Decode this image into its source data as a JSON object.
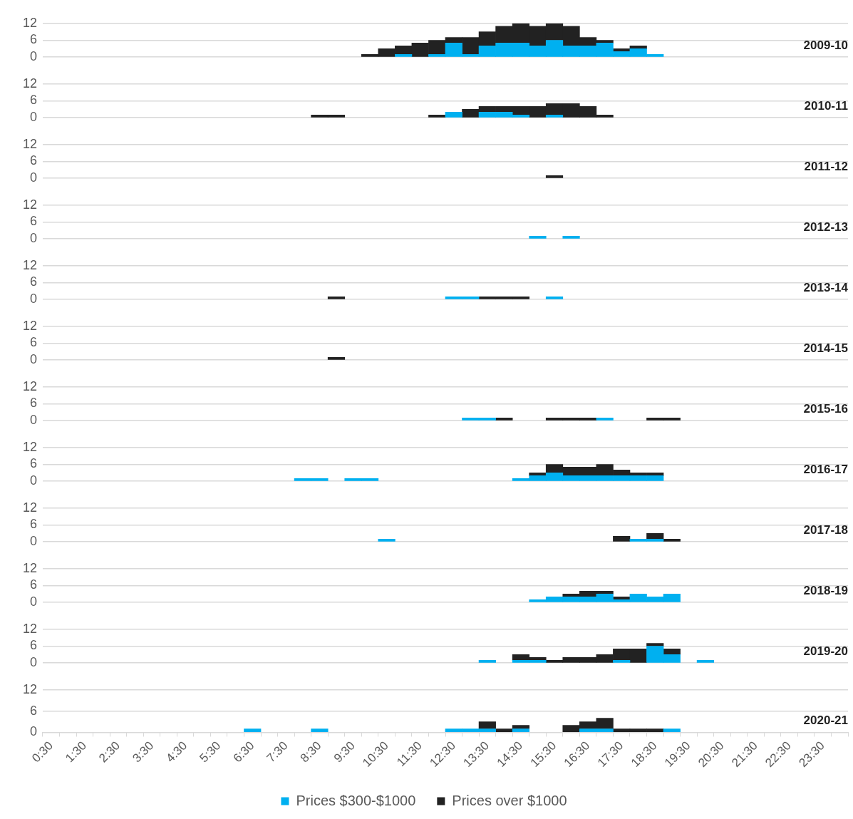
{
  "chart_data": [
    {
      "type": "bar",
      "title": "2009-10",
      "stacked": true,
      "grid": "y",
      "tick_labels": "y",
      "ylim": [
        0,
        12
      ],
      "yticks": [
        0,
        6,
        12
      ],
      "legend": false,
      "series": [
        {
          "color": "#00b0f0",
          "values": [
            null,
            null,
            null,
            null,
            null,
            null,
            null,
            null,
            null,
            null,
            null,
            null,
            null,
            null,
            null,
            null,
            null,
            null,
            null,
            null,
            null,
            1,
            null,
            1,
            5,
            1,
            4,
            5,
            5,
            4,
            6,
            4,
            4,
            5,
            2,
            3,
            1,
            null,
            null,
            null,
            null,
            null,
            null,
            null,
            null,
            null,
            null,
            null
          ]
        },
        {
          "color": "#222222",
          "values": [
            null,
            null,
            null,
            null,
            null,
            null,
            null,
            null,
            null,
            null,
            null,
            null,
            null,
            null,
            null,
            null,
            null,
            null,
            null,
            1,
            3,
            3,
            5,
            5,
            2,
            6,
            5,
            6,
            7,
            7,
            6,
            7,
            3,
            1,
            1,
            1,
            null,
            null,
            null,
            null,
            null,
            null,
            null,
            null,
            null,
            null,
            null,
            null
          ]
        }
      ]
    },
    {
      "type": "bar",
      "title": "2010-11",
      "stacked": true,
      "grid": "y",
      "tick_labels": "y",
      "ylim": [
        0,
        12
      ],
      "yticks": [
        0,
        6,
        12
      ],
      "legend": false,
      "series": [
        {
          "color": "#00b0f0",
          "values": [
            null,
            null,
            null,
            null,
            null,
            null,
            null,
            null,
            null,
            null,
            null,
            null,
            null,
            null,
            null,
            null,
            null,
            null,
            null,
            null,
            null,
            null,
            null,
            null,
            2,
            null,
            2,
            2,
            1,
            null,
            1,
            null,
            null,
            null,
            null,
            null,
            null,
            null,
            null,
            null,
            null,
            null,
            null,
            null,
            null,
            null,
            null,
            null
          ]
        },
        {
          "color": "#222222",
          "values": [
            null,
            null,
            null,
            null,
            null,
            null,
            null,
            null,
            null,
            null,
            null,
            null,
            null,
            null,
            null,
            null,
            1,
            1,
            null,
            null,
            null,
            null,
            null,
            1,
            null,
            3,
            2,
            2,
            3,
            4,
            4,
            5,
            4,
            1,
            null,
            null,
            null,
            null,
            null,
            null,
            null,
            null,
            null,
            null,
            null,
            null,
            null,
            null
          ]
        }
      ]
    },
    {
      "type": "bar",
      "title": "2011-12",
      "stacked": true,
      "grid": "y",
      "tick_labels": "y",
      "ylim": [
        0,
        12
      ],
      "yticks": [
        0,
        6,
        12
      ],
      "legend": false,
      "series": [
        {
          "color": "#00b0f0",
          "values": [
            null,
            null,
            null,
            null,
            null,
            null,
            null,
            null,
            null,
            null,
            null,
            null,
            null,
            null,
            null,
            null,
            null,
            null,
            null,
            null,
            null,
            null,
            null,
            null,
            null,
            null,
            null,
            null,
            null,
            null,
            null,
            null,
            null,
            null,
            null,
            null,
            null,
            null,
            null,
            null,
            null,
            null,
            null,
            null,
            null,
            null,
            null,
            null
          ]
        },
        {
          "color": "#222222",
          "values": [
            null,
            null,
            null,
            null,
            null,
            null,
            null,
            null,
            null,
            null,
            null,
            null,
            null,
            null,
            null,
            null,
            null,
            null,
            null,
            null,
            null,
            null,
            null,
            null,
            null,
            null,
            null,
            null,
            null,
            null,
            1,
            null,
            null,
            null,
            null,
            null,
            null,
            null,
            null,
            null,
            null,
            null,
            null,
            null,
            null,
            null,
            null,
            null
          ]
        }
      ]
    },
    {
      "type": "bar",
      "title": "2012-13",
      "stacked": true,
      "grid": "y",
      "tick_labels": "y",
      "ylim": [
        0,
        12
      ],
      "yticks": [
        0,
        6,
        12
      ],
      "legend": false,
      "series": [
        {
          "color": "#00b0f0",
          "values": [
            null,
            null,
            null,
            null,
            null,
            null,
            null,
            null,
            null,
            null,
            null,
            null,
            null,
            null,
            null,
            null,
            null,
            null,
            null,
            null,
            null,
            null,
            null,
            null,
            null,
            null,
            null,
            null,
            null,
            1,
            null,
            1,
            null,
            null,
            null,
            null,
            null,
            null,
            null,
            null,
            null,
            null,
            null,
            null,
            null,
            null,
            null,
            null
          ]
        },
        {
          "color": "#222222",
          "values": [
            null,
            null,
            null,
            null,
            null,
            null,
            null,
            null,
            null,
            null,
            null,
            null,
            null,
            null,
            null,
            null,
            null,
            null,
            null,
            null,
            null,
            null,
            null,
            null,
            null,
            null,
            null,
            null,
            null,
            null,
            null,
            null,
            null,
            null,
            null,
            null,
            null,
            null,
            null,
            null,
            null,
            null,
            null,
            null,
            null,
            null,
            null,
            null
          ]
        }
      ]
    },
    {
      "type": "bar",
      "title": "2013-14",
      "stacked": true,
      "grid": "y",
      "tick_labels": "y",
      "ylim": [
        0,
        12
      ],
      "yticks": [
        0,
        6,
        12
      ],
      "legend": false,
      "series": [
        {
          "color": "#00b0f0",
          "values": [
            null,
            null,
            null,
            null,
            null,
            null,
            null,
            null,
            null,
            null,
            null,
            null,
            null,
            null,
            null,
            null,
            null,
            null,
            null,
            null,
            null,
            null,
            null,
            null,
            1,
            1,
            null,
            null,
            null,
            null,
            1,
            null,
            null,
            null,
            null,
            null,
            null,
            null,
            null,
            null,
            null,
            null,
            null,
            null,
            null,
            null,
            null,
            null
          ]
        },
        {
          "color": "#222222",
          "values": [
            null,
            null,
            null,
            null,
            null,
            null,
            null,
            null,
            null,
            null,
            null,
            null,
            null,
            null,
            null,
            null,
            null,
            1,
            null,
            null,
            null,
            null,
            null,
            null,
            null,
            null,
            1,
            1,
            1,
            null,
            null,
            null,
            null,
            null,
            null,
            null,
            null,
            null,
            null,
            null,
            null,
            null,
            null,
            null,
            null,
            null,
            null,
            null
          ]
        }
      ]
    },
    {
      "type": "bar",
      "title": "2014-15",
      "stacked": true,
      "grid": "y",
      "tick_labels": "y",
      "ylim": [
        0,
        12
      ],
      "yticks": [
        0,
        6,
        12
      ],
      "legend": false,
      "series": [
        {
          "color": "#00b0f0",
          "values": [
            null,
            null,
            null,
            null,
            null,
            null,
            null,
            null,
            null,
            null,
            null,
            null,
            null,
            null,
            null,
            null,
            null,
            null,
            null,
            null,
            null,
            null,
            null,
            null,
            null,
            null,
            null,
            null,
            null,
            null,
            null,
            null,
            null,
            null,
            null,
            null,
            null,
            null,
            null,
            null,
            null,
            null,
            null,
            null,
            null,
            null,
            null,
            null
          ]
        },
        {
          "color": "#222222",
          "values": [
            null,
            null,
            null,
            null,
            null,
            null,
            null,
            null,
            null,
            null,
            null,
            null,
            null,
            null,
            null,
            null,
            null,
            1,
            null,
            null,
            null,
            null,
            null,
            null,
            null,
            null,
            null,
            null,
            null,
            null,
            null,
            null,
            null,
            null,
            null,
            null,
            null,
            null,
            null,
            null,
            null,
            null,
            null,
            null,
            null,
            null,
            null,
            null
          ]
        }
      ]
    },
    {
      "type": "bar",
      "title": "2015-16",
      "stacked": true,
      "grid": "y",
      "tick_labels": "y",
      "ylim": [
        0,
        12
      ],
      "yticks": [
        0,
        6,
        12
      ],
      "legend": false,
      "series": [
        {
          "color": "#00b0f0",
          "values": [
            null,
            null,
            null,
            null,
            null,
            null,
            null,
            null,
            null,
            null,
            null,
            null,
            null,
            null,
            null,
            null,
            null,
            null,
            null,
            null,
            null,
            null,
            null,
            null,
            null,
            1,
            1,
            null,
            null,
            null,
            null,
            null,
            null,
            1,
            null,
            null,
            null,
            null,
            null,
            null,
            null,
            null,
            null,
            null,
            null,
            null,
            null,
            null
          ]
        },
        {
          "color": "#222222",
          "values": [
            null,
            null,
            null,
            null,
            null,
            null,
            null,
            null,
            null,
            null,
            null,
            null,
            null,
            null,
            null,
            null,
            null,
            null,
            null,
            null,
            null,
            null,
            null,
            null,
            null,
            null,
            null,
            1,
            null,
            null,
            1,
            1,
            1,
            null,
            null,
            null,
            1,
            1,
            null,
            null,
            null,
            null,
            null,
            null,
            null,
            null,
            null,
            null
          ]
        }
      ]
    },
    {
      "type": "bar",
      "title": "2016-17",
      "stacked": true,
      "grid": "y",
      "tick_labels": "y",
      "ylim": [
        0,
        12
      ],
      "yticks": [
        0,
        6,
        12
      ],
      "legend": false,
      "series": [
        {
          "color": "#00b0f0",
          "values": [
            null,
            null,
            null,
            null,
            null,
            null,
            null,
            null,
            null,
            null,
            null,
            null,
            null,
            null,
            null,
            1,
            1,
            null,
            1,
            1,
            null,
            null,
            null,
            null,
            null,
            null,
            null,
            null,
            1,
            2,
            3,
            2,
            2,
            2,
            2,
            2,
            2,
            null,
            null,
            null,
            null,
            null,
            null,
            null,
            null,
            null,
            null,
            null
          ]
        },
        {
          "color": "#222222",
          "values": [
            null,
            null,
            null,
            null,
            null,
            null,
            null,
            null,
            null,
            null,
            null,
            null,
            null,
            null,
            null,
            null,
            null,
            null,
            null,
            null,
            null,
            null,
            null,
            null,
            null,
            null,
            null,
            null,
            null,
            1,
            3,
            3,
            3,
            4,
            2,
            1,
            1,
            null,
            null,
            null,
            null,
            null,
            null,
            null,
            null,
            null,
            null,
            null
          ]
        }
      ]
    },
    {
      "type": "bar",
      "title": "2017-18",
      "stacked": true,
      "grid": "y",
      "tick_labels": "y",
      "ylim": [
        0,
        12
      ],
      "yticks": [
        0,
        6,
        12
      ],
      "legend": false,
      "series": [
        {
          "color": "#00b0f0",
          "values": [
            null,
            null,
            null,
            null,
            null,
            null,
            null,
            null,
            null,
            null,
            null,
            null,
            null,
            null,
            null,
            null,
            null,
            null,
            null,
            null,
            1,
            null,
            null,
            null,
            null,
            null,
            null,
            null,
            null,
            null,
            null,
            null,
            null,
            null,
            null,
            1,
            1,
            null,
            null,
            null,
            null,
            null,
            null,
            null,
            null,
            null,
            null,
            null
          ]
        },
        {
          "color": "#222222",
          "values": [
            null,
            null,
            null,
            null,
            null,
            null,
            null,
            null,
            null,
            null,
            null,
            null,
            null,
            null,
            null,
            null,
            null,
            null,
            null,
            null,
            null,
            null,
            null,
            null,
            null,
            null,
            null,
            null,
            null,
            null,
            null,
            null,
            null,
            null,
            2,
            null,
            2,
            1,
            null,
            null,
            null,
            null,
            null,
            null,
            null,
            null,
            null,
            null
          ]
        }
      ]
    },
    {
      "type": "bar",
      "title": "2018-19",
      "stacked": true,
      "grid": "y",
      "tick_labels": "y",
      "ylim": [
        0,
        12
      ],
      "yticks": [
        0,
        6,
        12
      ],
      "legend": false,
      "series": [
        {
          "color": "#00b0f0",
          "values": [
            null,
            null,
            null,
            null,
            null,
            null,
            null,
            null,
            null,
            null,
            null,
            null,
            null,
            null,
            null,
            null,
            null,
            null,
            null,
            null,
            null,
            null,
            null,
            null,
            null,
            null,
            null,
            null,
            null,
            1,
            2,
            2,
            2,
            3,
            1,
            3,
            2,
            3,
            null,
            null,
            null,
            null,
            null,
            null,
            null,
            null,
            null,
            null
          ]
        },
        {
          "color": "#222222",
          "values": [
            null,
            null,
            null,
            null,
            null,
            null,
            null,
            null,
            null,
            null,
            null,
            null,
            null,
            null,
            null,
            null,
            null,
            null,
            null,
            null,
            null,
            null,
            null,
            null,
            null,
            null,
            null,
            null,
            null,
            null,
            null,
            1,
            2,
            1,
            1,
            null,
            null,
            null,
            null,
            null,
            null,
            null,
            null,
            null,
            null,
            null,
            null,
            null
          ]
        }
      ]
    },
    {
      "type": "bar",
      "title": "2019-20",
      "stacked": true,
      "grid": "y",
      "tick_labels": "y",
      "ylim": [
        0,
        12
      ],
      "yticks": [
        0,
        6,
        12
      ],
      "legend": false,
      "series": [
        {
          "color": "#00b0f0",
          "values": [
            null,
            null,
            null,
            null,
            null,
            null,
            null,
            null,
            null,
            null,
            null,
            null,
            null,
            null,
            null,
            null,
            null,
            null,
            null,
            null,
            null,
            null,
            null,
            null,
            null,
            null,
            1,
            null,
            1,
            1,
            null,
            null,
            null,
            null,
            1,
            null,
            6,
            3,
            null,
            1,
            null,
            null,
            null,
            null,
            null,
            null,
            null,
            null
          ]
        },
        {
          "color": "#222222",
          "values": [
            null,
            null,
            null,
            null,
            null,
            null,
            null,
            null,
            null,
            null,
            null,
            null,
            null,
            null,
            null,
            null,
            null,
            null,
            null,
            null,
            null,
            null,
            null,
            null,
            null,
            null,
            null,
            null,
            2,
            1,
            1,
            2,
            2,
            3,
            4,
            5,
            1,
            2,
            null,
            null,
            null,
            null,
            null,
            null,
            null,
            null,
            null,
            null
          ]
        }
      ]
    },
    {
      "type": "bar",
      "title": "2020-21",
      "stacked": true,
      "grid": "y",
      "ylim": [
        0,
        12
      ],
      "yticks": [
        0,
        6,
        12
      ],
      "legend": "bottom",
      "categories": [
        "0:30",
        null,
        "1:30",
        null,
        "2:30",
        null,
        "3:30",
        null,
        "4:30",
        null,
        "5:30",
        null,
        "6:30",
        null,
        "7:30",
        null,
        "8:30",
        null,
        "9:30",
        null,
        "10:30",
        null,
        "11:30",
        null,
        "12:30",
        null,
        "13:30",
        null,
        "14:30",
        null,
        "15:30",
        null,
        "16:30",
        null,
        "17:30",
        null,
        "18:30",
        null,
        "19:30",
        null,
        "20:30",
        null,
        "21:30",
        null,
        "22:30",
        null,
        "23:30",
        null
      ],
      "series": [
        {
          "name": "Prices $300-$1000",
          "color": "#00b0f0",
          "values": [
            null,
            null,
            null,
            null,
            null,
            null,
            null,
            null,
            null,
            null,
            null,
            null,
            1,
            null,
            null,
            null,
            1,
            null,
            null,
            null,
            null,
            null,
            null,
            null,
            1,
            1,
            1,
            null,
            1,
            null,
            null,
            null,
            1,
            1,
            null,
            null,
            null,
            1,
            null,
            null,
            null,
            null,
            null,
            null,
            null,
            null,
            null,
            null
          ]
        },
        {
          "name": "Prices over $1000",
          "color": "#222222",
          "values": [
            null,
            null,
            null,
            null,
            null,
            null,
            null,
            null,
            null,
            null,
            null,
            null,
            null,
            null,
            null,
            null,
            null,
            null,
            null,
            null,
            null,
            null,
            null,
            null,
            null,
            null,
            2,
            1,
            1,
            null,
            null,
            2,
            2,
            3,
            1,
            1,
            1,
            null,
            null,
            null,
            null,
            null,
            null,
            null,
            null,
            null,
            null,
            null
          ]
        }
      ]
    }
  ]
}
